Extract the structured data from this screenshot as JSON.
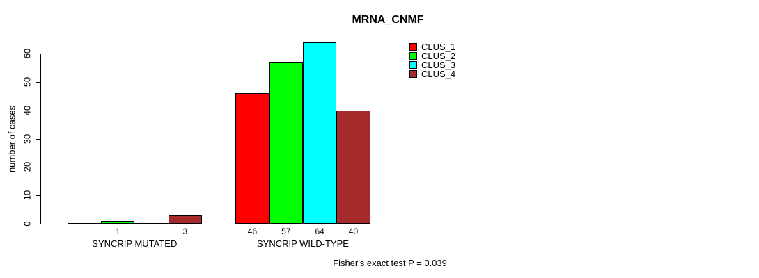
{
  "chart_data": {
    "type": "bar",
    "title": "MRNA_CNMF",
    "ylabel": "number of cases",
    "xlabel": "",
    "ylim": [
      0,
      60
    ],
    "yticks": [
      0,
      10,
      20,
      30,
      40,
      50,
      60
    ],
    "grid": false,
    "legend_position": "top-right",
    "categories": [
      "SYNCRIP MUTATED",
      "SYNCRIP WILD-TYPE"
    ],
    "series": [
      {
        "name": "CLUS_1",
        "color": "#FF0000",
        "values": [
          0,
          46
        ]
      },
      {
        "name": "CLUS_2",
        "color": "#00FF00",
        "values": [
          1,
          57
        ]
      },
      {
        "name": "CLUS_3",
        "color": "#00FFFF",
        "values": [
          0,
          64
        ]
      },
      {
        "name": "CLUS_4",
        "color": "#A52A2A",
        "values": [
          3,
          40
        ]
      }
    ],
    "bar_value_labels": [
      [
        "",
        "1",
        "",
        "3"
      ],
      [
        "46",
        "57",
        "64",
        "40"
      ]
    ],
    "annotation": "Fisher's exact test P = 0.039",
    "colors": {
      "bar_border": "#000000",
      "axis": "#000000",
      "text": "#000000",
      "background": "#FFFFFF"
    }
  }
}
